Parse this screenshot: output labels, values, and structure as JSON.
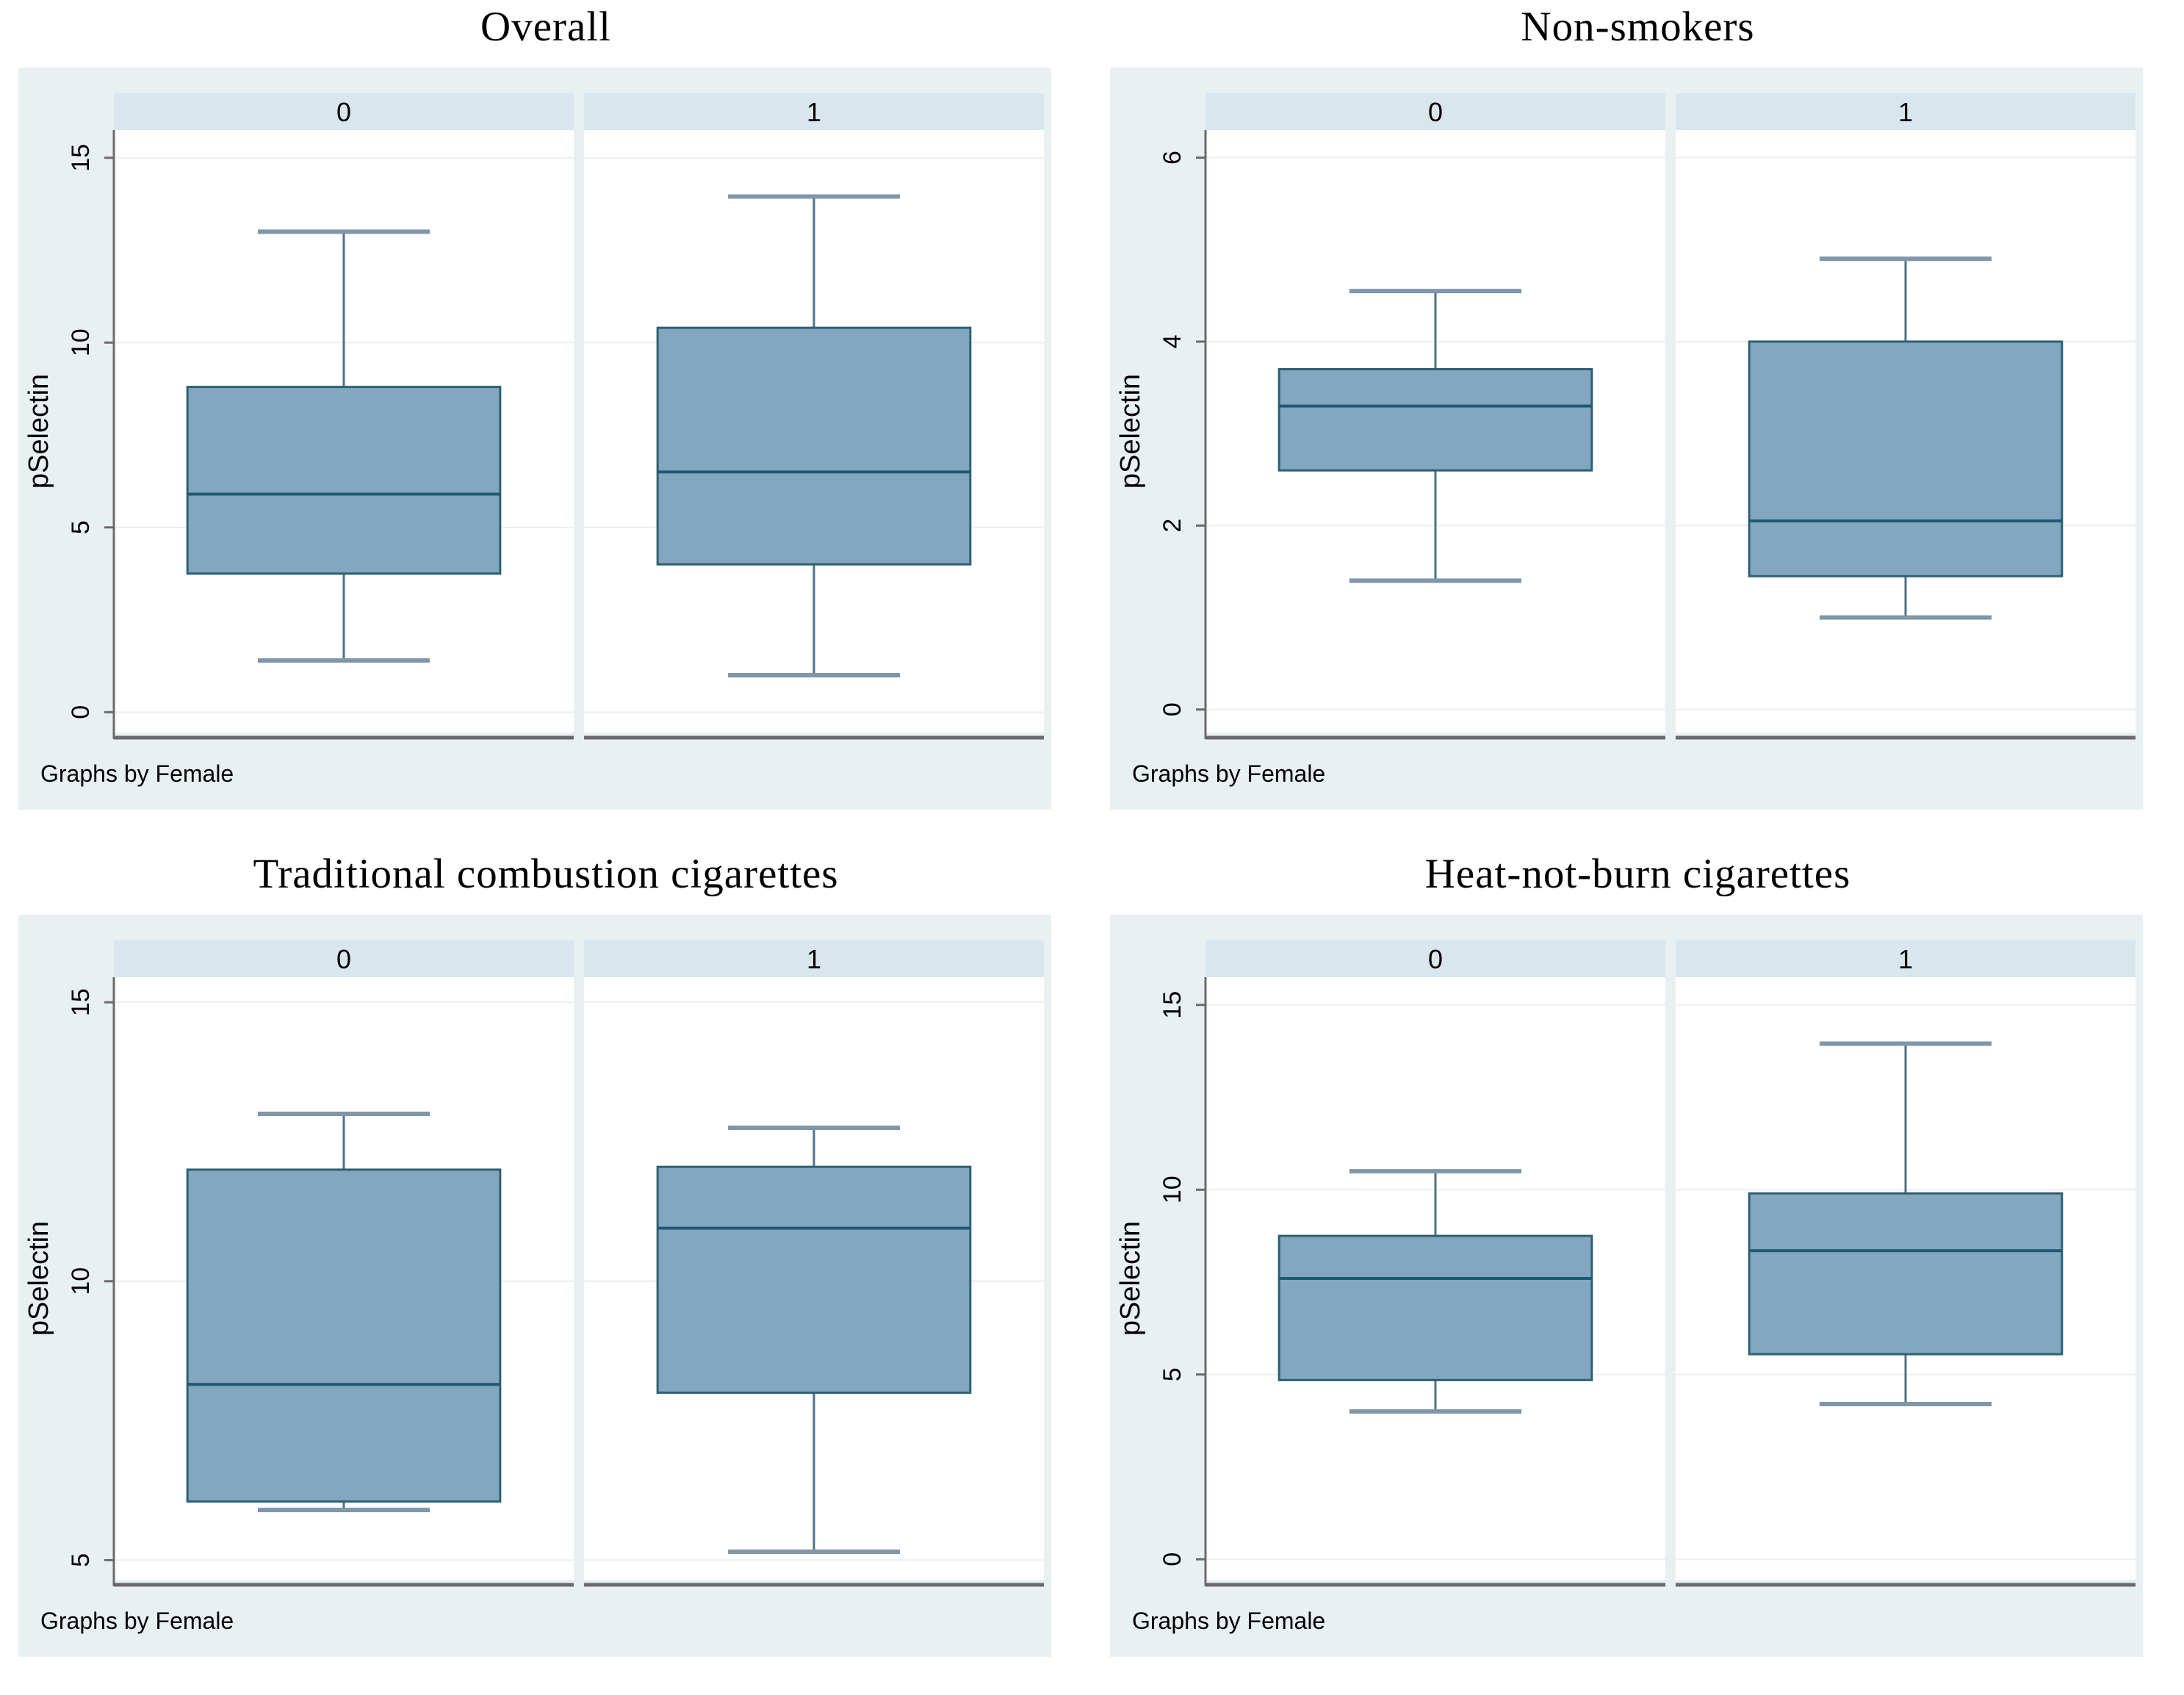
{
  "page": {
    "background": "#ffffff"
  },
  "style": {
    "figure_bg": "#e9f0f2",
    "strip_bg": "#d9e6ee",
    "plot_bg": "#ffffff",
    "gridline": "#f0ecec",
    "axis_line": "#6b6b6b",
    "box_fill": "#82a7be",
    "box_border": "#2d6074",
    "median_line": "#1f5a74",
    "whisker_line": "#4f7287",
    "whisker_cap": "#7f97a8",
    "text_color": "#000000"
  },
  "chart_data": [
    {
      "type": "boxplot",
      "title": "Overall",
      "ylabel": "pSelectin",
      "caption": "Graphs by Female",
      "group_variable": "Female",
      "yticks": [
        0,
        5,
        10,
        15
      ],
      "ylim": [
        -0.55,
        15.75
      ],
      "groups": [
        {
          "label": "0",
          "whislo": 1.4,
          "q1": 3.75,
          "med": 5.9,
          "q3": 8.8,
          "whishi": 13.0
        },
        {
          "label": "1",
          "whislo": 1.0,
          "q1": 4.0,
          "med": 6.5,
          "q3": 10.4,
          "whishi": 13.95
        }
      ]
    },
    {
      "type": "boxplot",
      "title": "Non-smokers",
      "ylabel": "pSelectin",
      "caption": "Graphs by Female",
      "group_variable": "Female",
      "yticks": [
        0,
        2,
        4,
        6
      ],
      "ylim": [
        -0.25,
        6.3
      ],
      "groups": [
        {
          "label": "0",
          "whislo": 1.4,
          "q1": 2.6,
          "med": 3.3,
          "q3": 3.7,
          "whishi": 4.55
        },
        {
          "label": "1",
          "whislo": 1.0,
          "q1": 1.45,
          "med": 2.05,
          "q3": 4.0,
          "whishi": 4.9
        }
      ]
    },
    {
      "type": "boxplot",
      "title": "Traditional combustion cigarettes",
      "ylabel": "pSelectin",
      "caption": "Graphs by Female",
      "group_variable": "Female",
      "yticks": [
        5,
        10,
        15
      ],
      "ylim": [
        4.65,
        15.45
      ],
      "groups": [
        {
          "label": "0",
          "whislo": 5.9,
          "q1": 6.05,
          "med": 8.15,
          "q3": 12.0,
          "whishi": 13.0
        },
        {
          "label": "1",
          "whislo": 5.15,
          "q1": 8.0,
          "med": 10.95,
          "q3": 12.05,
          "whishi": 12.75
        }
      ]
    },
    {
      "type": "boxplot",
      "title": "Heat-not-burn cigarettes",
      "ylabel": "pSelectin",
      "caption": "Graphs by Female",
      "group_variable": "Female",
      "yticks": [
        0,
        5,
        10,
        15
      ],
      "ylim": [
        -0.55,
        15.75
      ],
      "groups": [
        {
          "label": "0",
          "whislo": 4.0,
          "q1": 4.85,
          "med": 7.6,
          "q3": 8.75,
          "whishi": 10.5
        },
        {
          "label": "1",
          "whislo": 4.2,
          "q1": 5.55,
          "med": 8.35,
          "q3": 9.9,
          "whishi": 13.95
        }
      ]
    }
  ]
}
